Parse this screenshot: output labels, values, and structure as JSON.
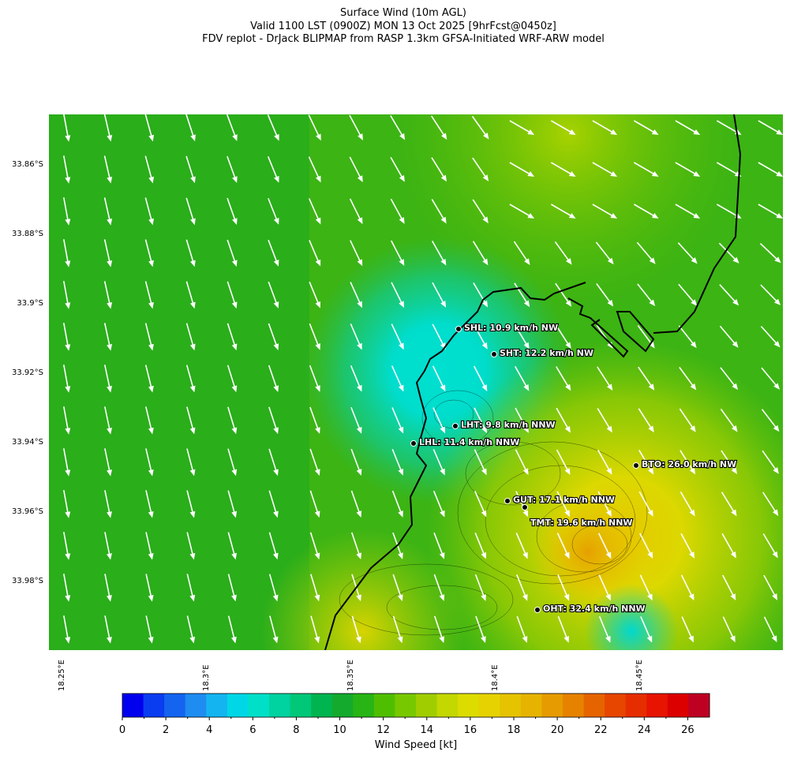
{
  "header": {
    "title": [
      "Surface Wind (10m AGL)",
      "Valid 1100 LST (0900Z) MON 13 Oct 2025 [9hrFcst@0450z]",
      "FDV replot - DrJack BLIPMAP from RASP 1.3km GFSA-Initiated WRF-ARW model"
    ]
  },
  "axes": {
    "latitudes": [
      "33.86°S",
      "33.88°S",
      "33.9°S",
      "33.92°S",
      "33.94°S",
      "33.96°S",
      "33.98°S"
    ],
    "longitudes": [
      "18.25°E",
      "18.3°E",
      "18.35°E",
      "18.4°E",
      "18.45°E"
    ]
  },
  "stations": [
    "SHL: 10.9 km/h NW",
    "SHT: 12.2 km/h NW",
    "LHT: 9.8 km/h NNW",
    "LHL: 11.4 km/h NNW",
    "BTO: 26.0 km/h NW",
    "GUT: 17.1 km/h NNW",
    "TMT: 19.6 km/h NNW",
    "OHT: 32.4 km/h NNW"
  ],
  "colorbar": {
    "label": "Wind Speed [kt]",
    "range": [
      0,
      27
    ],
    "ticks": [
      0,
      2,
      4,
      6,
      8,
      10,
      12,
      14,
      16,
      18,
      20,
      22,
      24,
      26
    ],
    "colors": [
      "#0000ee",
      "#0a3cf0",
      "#1464f0",
      "#1e8cf0",
      "#14b4f0",
      "#00d7e6",
      "#00e0c8",
      "#00d2a0",
      "#00c878",
      "#00b450",
      "#14aa2d",
      "#28b414",
      "#50be00",
      "#78c800",
      "#a0cd00",
      "#c3d700",
      "#dcdc00",
      "#e6d200",
      "#e6c300",
      "#e6b400",
      "#e69b00",
      "#e68200",
      "#e66400",
      "#e64600",
      "#e62d00",
      "#e61400",
      "#dc0000",
      "#be0023"
    ]
  }
}
